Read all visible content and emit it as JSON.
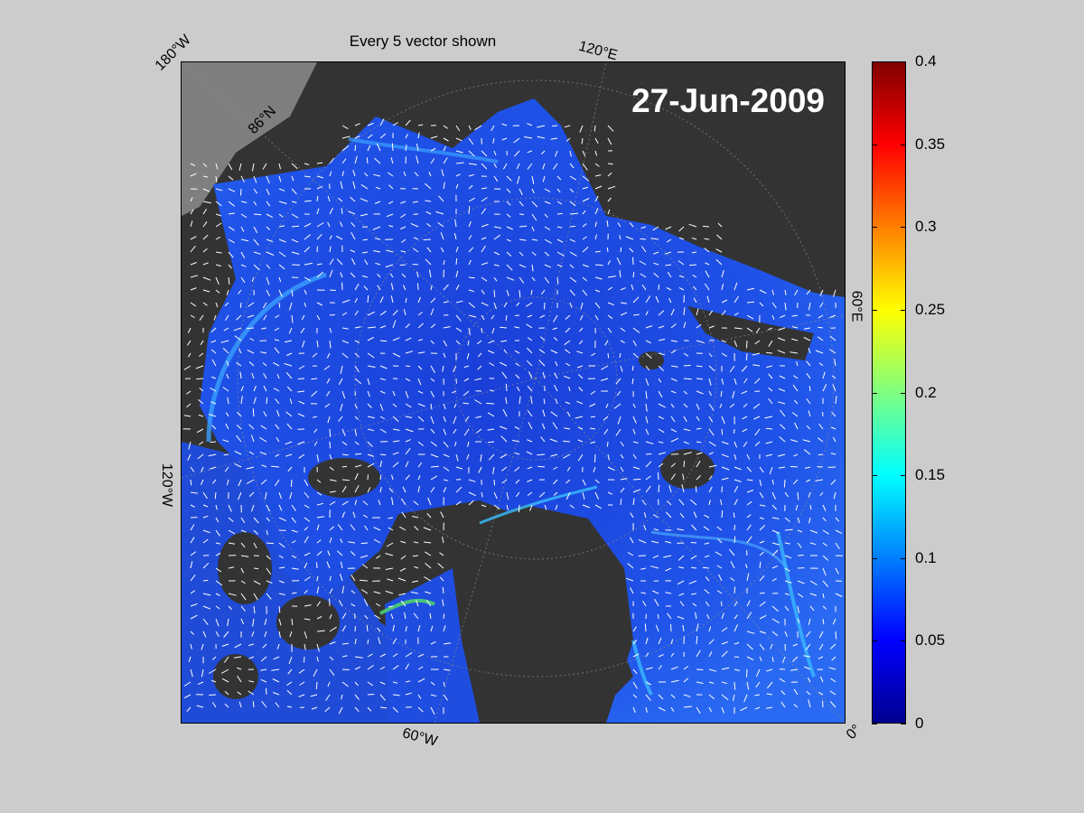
{
  "title": "Every 5 vector shown",
  "date_label": "27-Jun-2009",
  "grid_labels": {
    "lon_180w": "180°W",
    "lon_120e": "120°E",
    "lon_60e": "60°E",
    "lon_120w": "120°W",
    "lon_60w": "60°W",
    "lon_0": "0°",
    "lat_n": "86°N"
  },
  "colorbar": {
    "min": 0,
    "max": 0.4,
    "ticks": [
      "0",
      "0.05",
      "0.1",
      "0.15",
      "0.2",
      "0.25",
      "0.3",
      "0.35",
      "0.4"
    ],
    "colormap": "jet"
  },
  "colors": {
    "land": "#333333",
    "other_land": "#808080",
    "ice_field": "#1f4de0",
    "vector": "#ffffff",
    "background": "#cccccc"
  }
}
